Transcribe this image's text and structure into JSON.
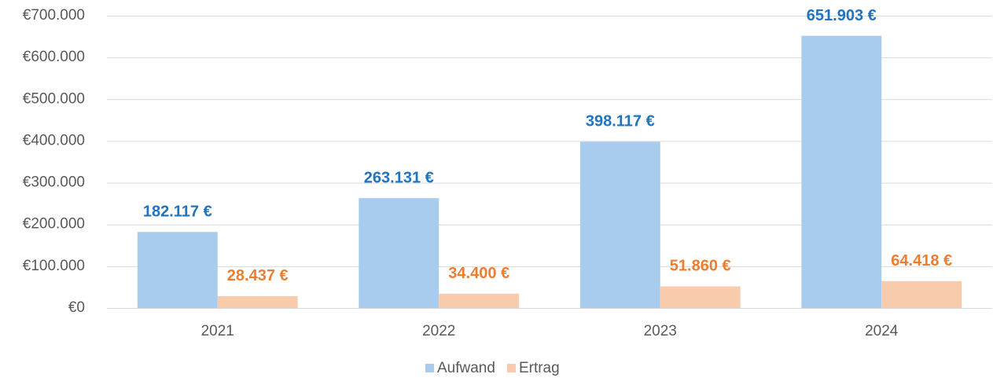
{
  "chart_data": {
    "type": "bar",
    "categories": [
      "2021",
      "2022",
      "2023",
      "2024"
    ],
    "series": [
      {
        "name": "Aufwand",
        "color": "#a9cbee",
        "label_color": "#1f74c2",
        "values": [
          182117,
          263131,
          398117,
          651903
        ],
        "value_labels": [
          "182.117 €",
          "263.131 €",
          "398.117 €",
          "651.903 €"
        ]
      },
      {
        "name": "Ertrag",
        "color": "#f8cbad",
        "label_color": "#ed7d31",
        "values": [
          28437,
          34400,
          51860,
          64418
        ],
        "value_labels": [
          "28.437 €",
          "34.400 €",
          "51.860 €",
          "64.418 €"
        ]
      }
    ],
    "ylim": [
      0,
      700000
    ],
    "yticks": [
      {
        "value": 0,
        "label": "€0"
      },
      {
        "value": 100000,
        "label": "€100.000"
      },
      {
        "value": 200000,
        "label": "€200.000"
      },
      {
        "value": 300000,
        "label": "€300.000"
      },
      {
        "value": 400000,
        "label": "€400.000"
      },
      {
        "value": 500000,
        "label": "€500.000"
      },
      {
        "value": 600000,
        "label": "€600.000"
      },
      {
        "value": 700000,
        "label": "€700.000"
      }
    ],
    "grid": true,
    "legend": "bottom"
  }
}
